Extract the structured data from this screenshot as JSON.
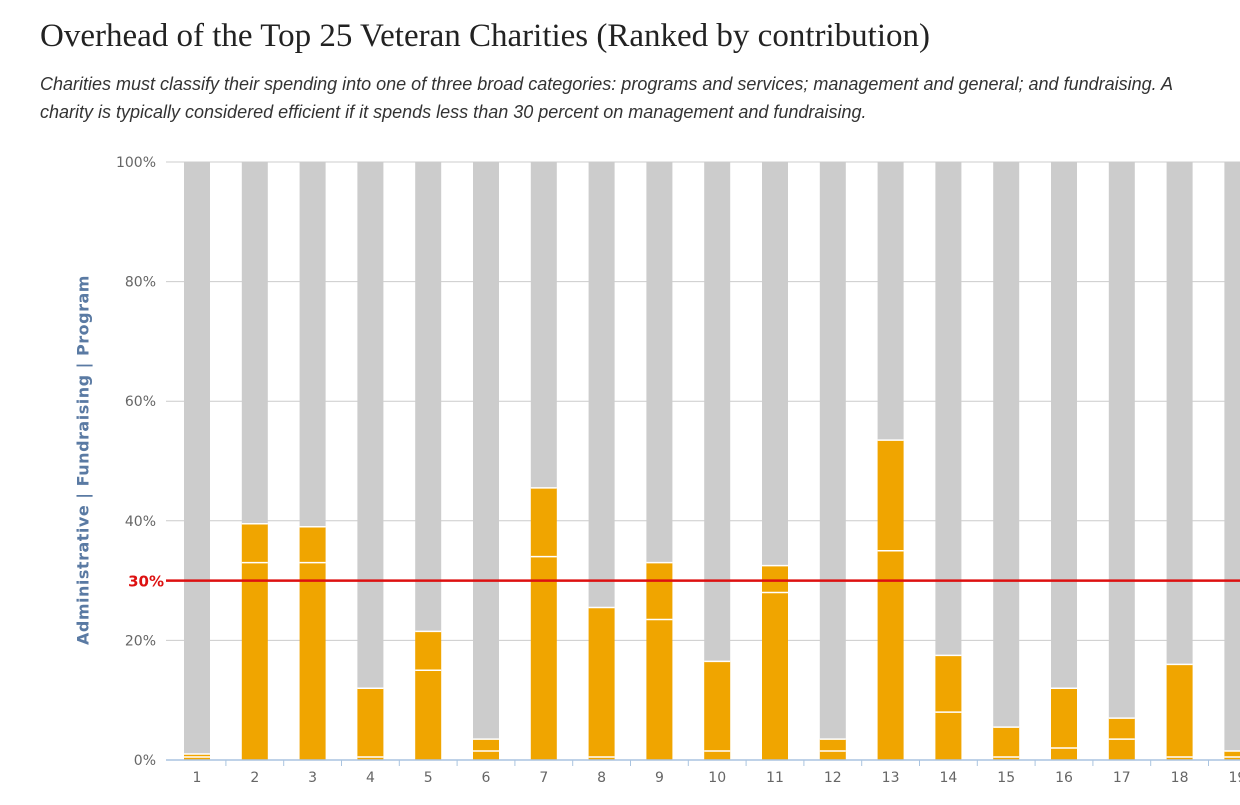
{
  "chart_data": {
    "type": "bar",
    "stacked": true,
    "title": "Overhead of the Top 25 Veteran Charities (Ranked by contribution)",
    "subtitle": "Charities must classify their spending into one of three broad categories: programs and services; management and general; and fundraising. A charity is typically considered efficient if it spends less than 30 percent on management and fundraising.",
    "ylabel": "Administrative | Fundraising | Program",
    "ylim": [
      0,
      100
    ],
    "y_ticks": [
      "0%",
      "20%",
      "40%",
      "60%",
      "80%",
      "100%"
    ],
    "categories": [
      "1",
      "2",
      "3",
      "4",
      "5",
      "6",
      "7",
      "8",
      "9",
      "10",
      "11",
      "12",
      "13",
      "14",
      "15",
      "16",
      "17",
      "18",
      "19"
    ],
    "series": [
      {
        "values": [
          0.5,
          33,
          33,
          0.5,
          15,
          1.5,
          34,
          0.5,
          23.5,
          1.5,
          28,
          1.5,
          35,
          8,
          0.5,
          2,
          3.5,
          0.5,
          0.5
        ]
      },
      {
        "values": [
          0.5,
          6.5,
          6,
          11.5,
          6.5,
          2,
          11.5,
          25,
          9.5,
          15,
          4.5,
          2,
          18.5,
          9.5,
          5,
          10,
          3.5,
          15.5,
          1
        ]
      },
      {
        "values": [
          99,
          60.5,
          61,
          88,
          78.5,
          96.5,
          54.5,
          74.5,
          67,
          83.5,
          67.5,
          96.5,
          46.5,
          82.5,
          94.5,
          88,
          93,
          84,
          98.5
        ]
      }
    ],
    "reference_line": {
      "value": 30,
      "label": "30%"
    },
    "colors": {
      "overhead": "#f0a500",
      "program": "#cccccc",
      "reference": "#dd1111",
      "divider": "#ffffff",
      "grid": "#cccccc"
    }
  }
}
